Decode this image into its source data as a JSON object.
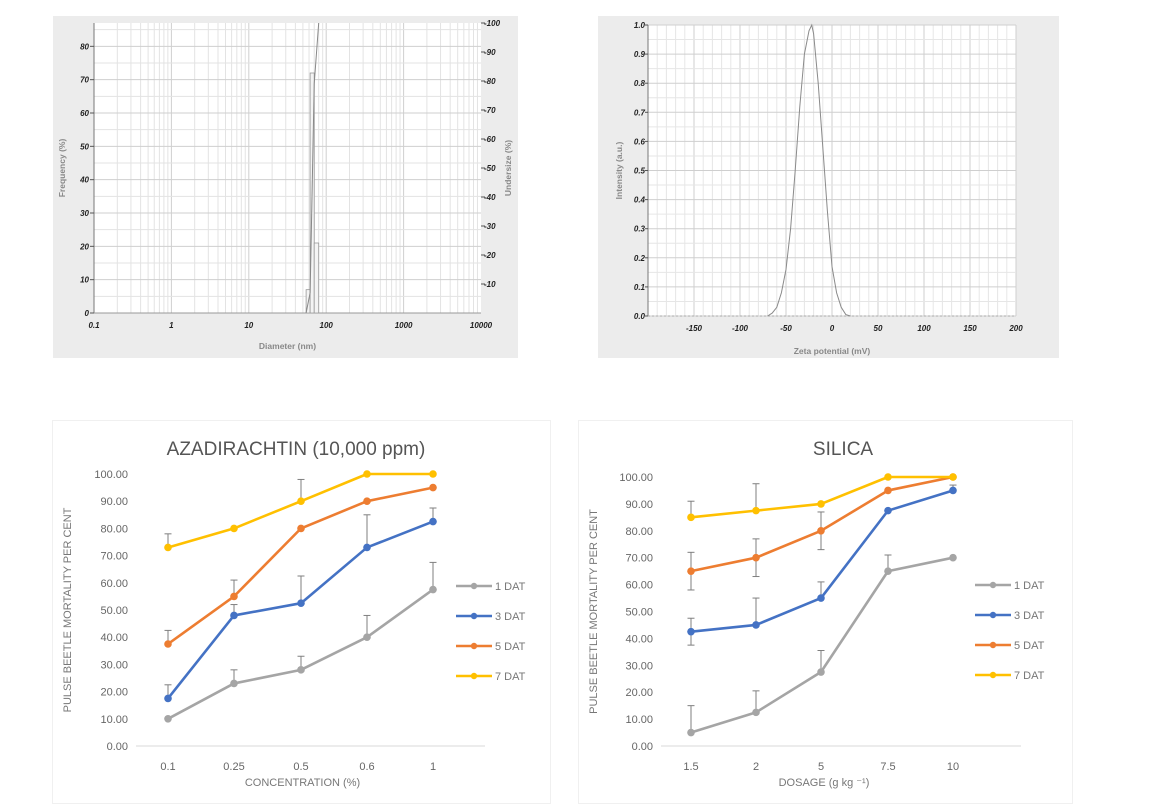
{
  "chart_data": [
    {
      "id": "dls",
      "type": "bar",
      "title": "",
      "xlabel": "Diameter (nm)",
      "ylabel": "Frequency (%)",
      "y2label": "Undersize (%)",
      "xscale": "log",
      "xlim": [
        0.1,
        10000
      ],
      "ylim": [
        0,
        87
      ],
      "y2lim": [
        0,
        100
      ],
      "xticks": [
        "0.1",
        "1",
        "10",
        "100",
        "1000",
        "10000"
      ],
      "yticks": [
        "0",
        "10",
        "20",
        "30",
        "40",
        "50",
        "60",
        "70",
        "80"
      ],
      "y2ticks": [
        "10",
        "20",
        "30",
        "40",
        "50",
        "60",
        "70",
        "80",
        "90",
        "100"
      ],
      "grid": true,
      "bars": [
        {
          "x_from": 55,
          "x_to": 62,
          "frequency": 7
        },
        {
          "x_from": 62,
          "x_to": 70,
          "frequency": 72
        },
        {
          "x_from": 70,
          "x_to": 80,
          "frequency": 21
        }
      ],
      "cumulative": {
        "name": "Undersize",
        "x": [
          55,
          62,
          70,
          80
        ],
        "y": [
          0,
          7,
          79,
          100
        ]
      }
    },
    {
      "id": "zeta",
      "type": "line",
      "title": "",
      "xlabel": "Zeta potential (mV)",
      "ylabel": "Intensity (a.u.)",
      "xlim": [
        -200,
        200
      ],
      "ylim": [
        0,
        1.0
      ],
      "xticks": [
        "-150",
        "-100",
        "-50",
        "0",
        "50",
        "100",
        "150",
        "200"
      ],
      "yticks": [
        "0.0",
        "0.1",
        "0.2",
        "0.3",
        "0.4",
        "0.5",
        "0.6",
        "0.7",
        "0.8",
        "0.9",
        "1.0"
      ],
      "grid": true,
      "series": [
        {
          "name": "Intensity",
          "x": [
            -70,
            -65,
            -60,
            -55,
            -50,
            -45,
            -40,
            -35,
            -30,
            -25,
            -22,
            -20,
            -15,
            -10,
            -5,
            0,
            5,
            10,
            15,
            20
          ],
          "y": [
            0.0,
            0.01,
            0.03,
            0.08,
            0.16,
            0.3,
            0.5,
            0.72,
            0.9,
            0.98,
            1.0,
            0.97,
            0.8,
            0.58,
            0.36,
            0.17,
            0.08,
            0.03,
            0.005,
            0.0
          ]
        }
      ]
    },
    {
      "id": "azadirachtin",
      "type": "line",
      "title": "AZADIRACHTIN (10,000 ppm)",
      "xlabel": "CONCENTRATION  (%)",
      "ylabel": "PULSE BEETLE  MORTALITY PER CENT",
      "categories": [
        "0.1",
        "0.25",
        "0.5",
        "0.6",
        "1"
      ],
      "ylim": [
        0,
        100
      ],
      "yticks": [
        "0.00",
        "10.00",
        "20.00",
        "30.00",
        "40.00",
        "50.00",
        "60.00",
        "70.00",
        "80.00",
        "90.00",
        "100.00"
      ],
      "grid": false,
      "legend": "right",
      "series": [
        {
          "name": "1 DAT",
          "color": "#a5a5a5",
          "values": [
            10,
            23,
            28,
            40,
            57.5
          ],
          "error": [
            0,
            5,
            5,
            8,
            10
          ]
        },
        {
          "name": "3 DAT",
          "color": "#4472c4",
          "values": [
            17.5,
            48,
            52.5,
            73,
            82.5
          ],
          "error": [
            5,
            4,
            10,
            12,
            5
          ]
        },
        {
          "name": "5 DAT",
          "color": "#ed7d31",
          "values": [
            37.5,
            55,
            80,
            90,
            95
          ],
          "error": [
            5,
            6,
            0,
            0,
            0
          ]
        },
        {
          "name": "7 DAT",
          "color": "#ffc000",
          "values": [
            73,
            80,
            90,
            100,
            100
          ],
          "error": [
            5,
            0,
            8,
            0,
            0
          ]
        }
      ]
    },
    {
      "id": "silica",
      "type": "line",
      "title": "SILICA",
      "xlabel": "DOSAGE  (g kg ⁻¹)",
      "ylabel": "PULSE BEETLE  MORTALITY PER CENT",
      "categories": [
        "1.5",
        "2",
        "5",
        "7.5",
        "10"
      ],
      "ylim": [
        0,
        100
      ],
      "yticks": [
        "0.00",
        "10.00",
        "20.00",
        "30.00",
        "40.00",
        "50.00",
        "60.00",
        "70.00",
        "80.00",
        "90.00",
        "100.00"
      ],
      "grid": false,
      "legend": "right",
      "series": [
        {
          "name": "1 DAT",
          "color": "#a5a5a5",
          "values": [
            5,
            12.5,
            27.5,
            65,
            70
          ],
          "error": [
            10,
            8,
            8,
            6,
            0
          ]
        },
        {
          "name": "3 DAT",
          "color": "#4472c4",
          "values": [
            42.5,
            45,
            55,
            87.5,
            95
          ],
          "error": [
            5,
            10,
            6,
            0,
            2
          ]
        },
        {
          "name": "5 DAT",
          "color": "#ed7d31",
          "values": [
            65,
            70,
            80,
            95,
            100
          ],
          "error": [
            7,
            7,
            7,
            0,
            0
          ]
        },
        {
          "name": "7 DAT",
          "color": "#ffc000",
          "values": [
            85,
            87.5,
            90,
            100,
            100
          ],
          "error": [
            6,
            10,
            0,
            0,
            0
          ]
        }
      ]
    }
  ]
}
